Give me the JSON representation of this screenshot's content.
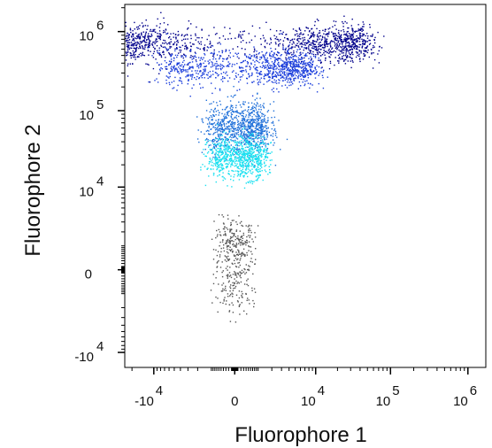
{
  "chart_data": {
    "type": "scatter",
    "title": "",
    "xlabel": "Fluorophore 1",
    "ylabel": "Fluorophore 2",
    "x_scale": "biexponential",
    "y_scale": "biexponential",
    "xlim": [
      -25000,
      1700000
    ],
    "ylim": [
      -16000,
      2200000
    ],
    "x_tick_labels": [
      {
        "value": -10000,
        "base": "-10",
        "exp": "4"
      },
      {
        "value": 0,
        "base": "0",
        "exp": ""
      },
      {
        "value": 10000,
        "base": "10",
        "exp": "4"
      },
      {
        "value": 100000,
        "base": "10",
        "exp": "5"
      },
      {
        "value": 1000000,
        "base": "10",
        "exp": "6"
      }
    ],
    "y_tick_labels": [
      {
        "value": -10000,
        "base": "-10",
        "exp": "4"
      },
      {
        "value": 0,
        "base": "0",
        "exp": ""
      },
      {
        "value": 10000,
        "base": "10",
        "exp": "4"
      },
      {
        "value": 100000,
        "base": "10",
        "exp": "5"
      },
      {
        "value": 1000000,
        "base": "10",
        "exp": "6"
      }
    ],
    "grid": false,
    "legend": "none",
    "populations": [
      {
        "color": "#00008b",
        "x_center": 3000,
        "y_center": 700000,
        "x_spread": 25000,
        "y_spread": 0.12,
        "n_points": 1400
      },
      {
        "color": "#1a3ddb",
        "x_center": 1500,
        "y_center": 350000,
        "x_spread": 4000,
        "y_spread": 0.12,
        "n_points": 1000
      },
      {
        "color": "#1e6fd9",
        "x_center": 300,
        "y_center": 60000,
        "x_spread": 800,
        "y_spread": 0.16,
        "n_points": 900
      },
      {
        "color": "#1ae0f0",
        "x_center": 200,
        "y_center": 25000,
        "x_spread": 700,
        "y_spread": 0.14,
        "n_points": 800
      },
      {
        "color": "#555555",
        "x_center": 0,
        "y_center": 500,
        "x_spread": 400,
        "y_spread": 1200,
        "n_points": 400
      }
    ]
  }
}
